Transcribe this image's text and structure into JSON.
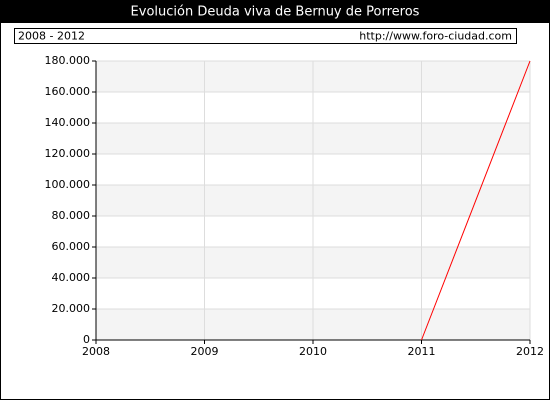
{
  "chart_data": {
    "type": "line",
    "title": "Evolución Deuda viva de Bernuy de Porreros",
    "period": "2008 - 2012",
    "source": "http://www.foro-ciudad.com",
    "x": [
      2008,
      2009,
      2010,
      2011,
      2012
    ],
    "series": [
      {
        "color": "#ff0000",
        "values": [
          null,
          null,
          null,
          0,
          180000
        ]
      }
    ],
    "xlim": [
      2008,
      2012
    ],
    "xticks": [
      2008,
      2009,
      2010,
      2011,
      2012
    ],
    "ylim": [
      0,
      180000
    ],
    "yticks": [
      0,
      {
        "value": 20000,
        "label": "20.000"
      },
      {
        "value": 40000,
        "label": "40.000"
      },
      {
        "value": 60000,
        "label": "60.000"
      },
      {
        "value": 80000,
        "label": "80.000"
      },
      {
        "value": 100000,
        "label": "100.000"
      },
      {
        "value": 120000,
        "label": "120.000"
      },
      {
        "value": 140000,
        "label": "140.000"
      },
      {
        "value": 160000,
        "label": "160.000"
      },
      {
        "value": 180000,
        "label": "180.000"
      }
    ],
    "grid": true
  }
}
